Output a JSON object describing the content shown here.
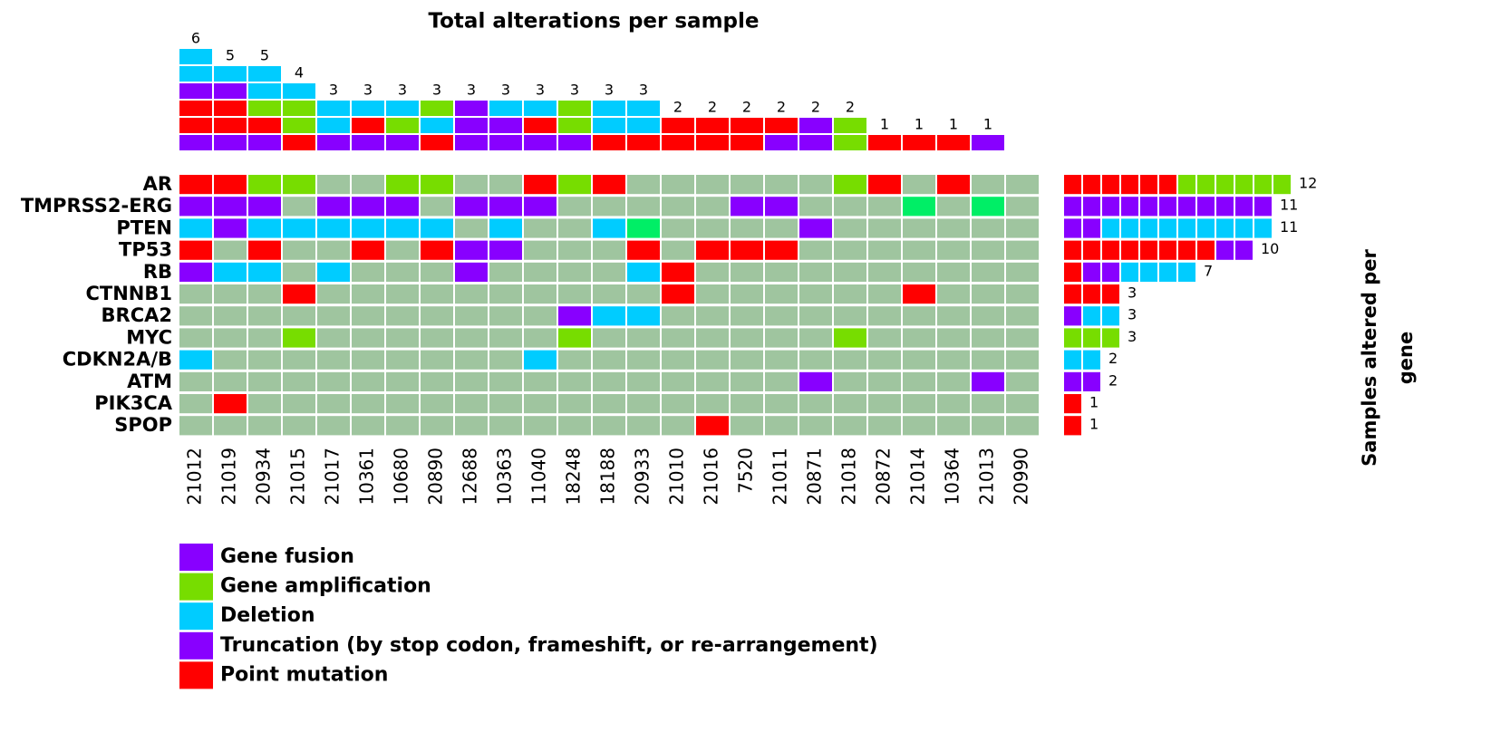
{
  "chart_data": {
    "type": "oncoprint",
    "title": "Total alterations per sample",
    "right_title": [
      "Samples  altered  per",
      "gene"
    ],
    "background": "#9fc59f",
    "samples": [
      "21012",
      "21019",
      "20934",
      "21015",
      "21017",
      "10361",
      "10680",
      "20890",
      "12688",
      "10363",
      "11040",
      "18248",
      "18188",
      "20933",
      "21010",
      "21016",
      "7520",
      "21011",
      "20871",
      "21018",
      "20872",
      "21014",
      "10364",
      "21013",
      "20990"
    ],
    "genes": [
      "AR",
      "TMPRSS2-ERG",
      "PTEN",
      "TP53",
      "RB",
      "CTNNB1",
      "BRCA2",
      "MYC",
      "CDKN2A/B",
      "ATM",
      "PIK3CA",
      "SPOP"
    ],
    "cells": [
      [
        "#f00",
        "#f00",
        "#7d0",
        "#7d0",
        null,
        null,
        "#7d0",
        "#7d0",
        null,
        null,
        "#f00",
        "#7d0",
        "#f00",
        null,
        null,
        null,
        null,
        null,
        null,
        "#7d0",
        "#f00",
        null,
        "#f00",
        null,
        null
      ],
      [
        "#80f",
        "#80f",
        "#80f",
        null,
        "#80f",
        "#80f",
        "#80f",
        null,
        "#80f",
        "#80f",
        "#80f",
        null,
        null,
        null,
        null,
        null,
        "#80f",
        "#80f",
        null,
        null,
        null,
        "#0e6",
        null,
        "#0e6",
        null
      ],
      [
        "#0cf",
        "#80f",
        "#0cf",
        "#0cf",
        "#0cf",
        "#0cf",
        "#0cf",
        "#0cf",
        null,
        "#0cf",
        null,
        null,
        "#0cf",
        "#0e6",
        null,
        null,
        null,
        null,
        "#80f",
        null,
        null,
        null,
        null,
        null,
        null
      ],
      [
        "#f00",
        null,
        "#f00",
        null,
        null,
        "#f00",
        null,
        "#f00",
        "#80f",
        "#80f",
        null,
        null,
        null,
        "#f00",
        null,
        "#f00",
        "#f00",
        "#f00",
        null,
        null,
        null,
        null,
        null,
        null,
        null
      ],
      [
        "#80f",
        "#0cf",
        "#0cf",
        null,
        "#0cf",
        null,
        null,
        null,
        "#80f",
        null,
        null,
        null,
        null,
        "#0cf",
        "#f00",
        null,
        null,
        null,
        null,
        null,
        null,
        null,
        null,
        null,
        null
      ],
      [
        null,
        null,
        null,
        "#f00",
        null,
        null,
        null,
        null,
        null,
        null,
        null,
        null,
        null,
        null,
        "#f00",
        null,
        null,
        null,
        null,
        null,
        null,
        "#f00",
        null,
        null,
        null
      ],
      [
        null,
        null,
        null,
        null,
        null,
        null,
        null,
        null,
        null,
        null,
        null,
        "#80f",
        "#0cf",
        "#0cf",
        null,
        null,
        null,
        null,
        null,
        null,
        null,
        null,
        null,
        null,
        null
      ],
      [
        null,
        null,
        null,
        "#7d0",
        null,
        null,
        null,
        null,
        null,
        null,
        null,
        "#7d0",
        null,
        null,
        null,
        null,
        null,
        null,
        null,
        "#7d0",
        null,
        null,
        null,
        null,
        null
      ],
      [
        "#0cf",
        null,
        null,
        null,
        null,
        null,
        null,
        null,
        null,
        null,
        "#0cf",
        null,
        null,
        null,
        null,
        null,
        null,
        null,
        null,
        null,
        null,
        null,
        null,
        null,
        null
      ],
      [
        null,
        null,
        null,
        null,
        null,
        null,
        null,
        null,
        null,
        null,
        null,
        null,
        null,
        null,
        null,
        null,
        null,
        null,
        "#80f",
        null,
        null,
        null,
        null,
        "#80f",
        null
      ],
      [
        null,
        "#f00",
        null,
        null,
        null,
        null,
        null,
        null,
        null,
        null,
        null,
        null,
        null,
        null,
        null,
        null,
        null,
        null,
        null,
        null,
        null,
        null,
        null,
        null,
        null
      ],
      [
        null,
        null,
        null,
        null,
        null,
        null,
        null,
        null,
        null,
        null,
        null,
        null,
        null,
        null,
        null,
        "#f00",
        null,
        null,
        null,
        null,
        null,
        null,
        null,
        null,
        null
      ]
    ],
    "sample_totals": [
      6,
      5,
      5,
      4,
      3,
      3,
      3,
      3,
      3,
      3,
      3,
      3,
      3,
      3,
      2,
      2,
      2,
      2,
      2,
      2,
      1,
      1,
      1,
      1,
      null
    ],
    "sample_stacks": [
      [
        "#80f",
        "#f00",
        "#f00",
        "#80f",
        "#0cf",
        "#0cf"
      ],
      [
        "#80f",
        "#f00",
        "#f00",
        "#80f",
        "#0cf"
      ],
      [
        "#80f",
        "#f00",
        "#7d0",
        "#0cf",
        "#0cf"
      ],
      [
        "#f00",
        "#7d0",
        "#7d0",
        "#0cf"
      ],
      [
        "#80f",
        "#0cf",
        "#0cf"
      ],
      [
        "#80f",
        "#f00",
        "#0cf"
      ],
      [
        "#80f",
        "#7d0",
        "#0cf"
      ],
      [
        "#f00",
        "#0cf",
        "#7d0"
      ],
      [
        "#80f",
        "#80f",
        "#80f"
      ],
      [
        "#80f",
        "#80f",
        "#0cf"
      ],
      [
        "#80f",
        "#f00",
        "#0cf"
      ],
      [
        "#80f",
        "#7d0",
        "#7d0"
      ],
      [
        "#f00",
        "#0cf",
        "#0cf"
      ],
      [
        "#f00",
        "#0cf",
        "#0cf"
      ],
      [
        "#f00",
        "#f00"
      ],
      [
        "#f00",
        "#f00"
      ],
      [
        "#f00",
        "#f00"
      ],
      [
        "#80f",
        "#f00"
      ],
      [
        "#80f",
        "#80f"
      ],
      [
        "#7d0",
        "#7d0"
      ],
      [
        "#f00"
      ],
      [
        "#f00"
      ],
      [
        "#f00"
      ],
      [
        "#80f"
      ],
      []
    ],
    "gene_totals": [
      12,
      11,
      11,
      10,
      7,
      3,
      3,
      3,
      2,
      2,
      1,
      1
    ],
    "gene_stacks": [
      [
        "#f00",
        "#f00",
        "#f00",
        "#f00",
        "#f00",
        "#f00",
        "#7d0",
        "#7d0",
        "#7d0",
        "#7d0",
        "#7d0",
        "#7d0"
      ],
      [
        "#80f",
        "#80f",
        "#80f",
        "#80f",
        "#80f",
        "#80f",
        "#80f",
        "#80f",
        "#80f",
        "#80f",
        "#80f"
      ],
      [
        "#80f",
        "#80f",
        "#0cf",
        "#0cf",
        "#0cf",
        "#0cf",
        "#0cf",
        "#0cf",
        "#0cf",
        "#0cf",
        "#0cf"
      ],
      [
        "#f00",
        "#f00",
        "#f00",
        "#f00",
        "#f00",
        "#f00",
        "#f00",
        "#f00",
        "#80f",
        "#80f"
      ],
      [
        "#f00",
        "#80f",
        "#80f",
        "#0cf",
        "#0cf",
        "#0cf",
        "#0cf"
      ],
      [
        "#f00",
        "#f00",
        "#f00"
      ],
      [
        "#80f",
        "#0cf",
        "#0cf"
      ],
      [
        "#7d0",
        "#7d0",
        "#7d0"
      ],
      [
        "#0cf",
        "#0cf"
      ],
      [
        "#80f",
        "#80f"
      ],
      [
        "#f00"
      ],
      [
        "#f00"
      ]
    ],
    "legend": [
      {
        "name": "Gene fusion",
        "color": "#80f"
      },
      {
        "name": "Gene amplification",
        "color": "#7d0"
      },
      {
        "name": "Deletion",
        "color": "#0cf"
      },
      {
        "name": "Truncation (by stop codon, frameshift, or re-arrangement)",
        "color": "#80f"
      },
      {
        "name": "Point mutation",
        "color": "#f00"
      }
    ]
  }
}
